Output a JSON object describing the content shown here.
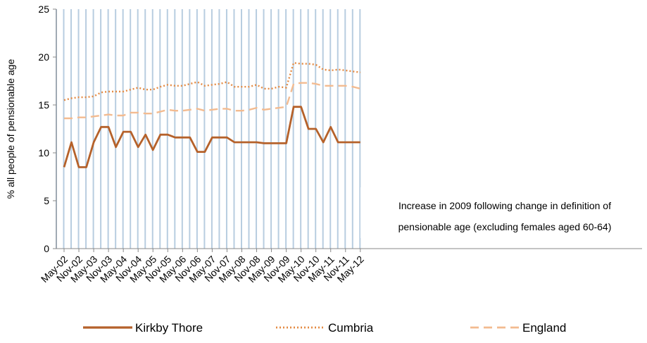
{
  "chart_data": {
    "type": "line",
    "title": "",
    "xlabel": "",
    "ylabel": "% all people of pensionable age",
    "ylim": [
      0,
      25
    ],
    "yticks": [
      0,
      5,
      10,
      15,
      20,
      25
    ],
    "x_tick_labels": [
      "May-02",
      "Nov-02",
      "May-03",
      "Nov-03",
      "May-04",
      "Nov-04",
      "May-05",
      "Nov-05",
      "May-06",
      "Nov-06",
      "May-07",
      "Nov-07",
      "May-08",
      "Nov-08",
      "May-09",
      "Nov-09",
      "May-10",
      "Nov-10",
      "May-11",
      "Nov-11",
      "May-12"
    ],
    "x": [
      "May-02",
      "Aug-02",
      "Nov-02",
      "Feb-03",
      "May-03",
      "Aug-03",
      "Nov-03",
      "Feb-04",
      "May-04",
      "Aug-04",
      "Nov-04",
      "Feb-05",
      "May-05",
      "Aug-05",
      "Nov-05",
      "Feb-06",
      "May-06",
      "Aug-06",
      "Nov-06",
      "Feb-07",
      "May-07",
      "Aug-07",
      "Nov-07",
      "Feb-08",
      "May-08",
      "Aug-08",
      "Nov-08",
      "Feb-09",
      "May-09",
      "Aug-09",
      "Nov-09",
      "Feb-10",
      "May-10",
      "Aug-10",
      "Nov-10",
      "Feb-11",
      "May-11",
      "Aug-11",
      "Nov-11",
      "Feb-12",
      "May-12"
    ],
    "series": [
      {
        "name": "Kirkby Thore",
        "color": "#b5612a",
        "style": "solid",
        "values": [
          8.5,
          11.1,
          8.5,
          8.5,
          11.1,
          12.7,
          12.7,
          10.6,
          12.2,
          12.2,
          10.6,
          11.9,
          10.3,
          11.9,
          11.9,
          11.6,
          11.6,
          11.6,
          10.1,
          10.1,
          11.6,
          11.6,
          11.6,
          11.1,
          11.1,
          11.1,
          11.1,
          11.0,
          11.0,
          11.0,
          11.0,
          14.8,
          14.8,
          12.5,
          12.5,
          11.1,
          12.7,
          11.1,
          11.1,
          11.1,
          11.1
        ]
      },
      {
        "name": "Cumbria",
        "color": "#e48b44",
        "style": "dotted",
        "values": [
          15.5,
          15.7,
          15.8,
          15.8,
          15.9,
          16.3,
          16.4,
          16.4,
          16.4,
          16.6,
          16.8,
          16.6,
          16.6,
          16.9,
          17.1,
          17.0,
          17.0,
          17.2,
          17.4,
          17.0,
          17.1,
          17.2,
          17.4,
          16.9,
          16.9,
          16.9,
          17.1,
          16.7,
          16.7,
          16.9,
          16.8,
          19.4,
          19.3,
          19.3,
          19.2,
          18.7,
          18.6,
          18.7,
          18.6,
          18.5,
          18.4
        ]
      },
      {
        "name": "England",
        "color": "#f3bb90",
        "style": "dashed",
        "values": [
          13.6,
          13.6,
          13.7,
          13.7,
          13.8,
          13.9,
          14.0,
          13.9,
          13.9,
          14.2,
          14.2,
          14.1,
          14.1,
          14.3,
          14.5,
          14.4,
          14.4,
          14.5,
          14.6,
          14.4,
          14.5,
          14.6,
          14.6,
          14.4,
          14.4,
          14.5,
          14.7,
          14.5,
          14.6,
          14.7,
          14.8,
          17.2,
          17.3,
          17.3,
          17.2,
          17.0,
          17.0,
          17.0,
          17.0,
          16.9,
          16.7
        ]
      }
    ],
    "annotation": [
      "Increase in 2009 following change in definition of",
      "pensionable age (excluding females aged 60-64)"
    ],
    "grid": {
      "vertical": true,
      "horizontal": false,
      "color": "#b8cde0"
    },
    "legend_position": "bottom"
  }
}
